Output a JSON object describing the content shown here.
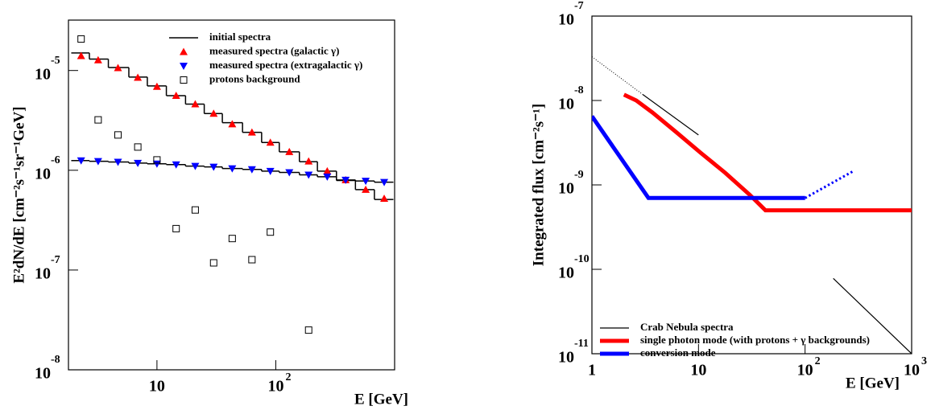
{
  "chart_data": [
    {
      "type": "scatter",
      "logx": true,
      "logy": true,
      "legend": "top",
      "xlabel": "E [GeV]",
      "ylabel": "E²dN/dE [cm⁻²s⁻¹sr⁻¹GeV]",
      "xlim": [
        1.8,
        1000
      ],
      "ylim": [
        1e-08,
        3.2e-05
      ],
      "xticks": [
        10,
        {
          "value": 100,
          "label": "10",
          "exponent": "2"
        }
      ],
      "yticks": [
        {
          "value": 1e-05,
          "label": "10",
          "exponent": "-5"
        },
        {
          "value": 1e-06,
          "label": "10",
          "exponent": "-6"
        },
        {
          "value": 1e-07,
          "label": "10",
          "exponent": "-7"
        },
        {
          "value": 1e-08,
          "label": "10",
          "exponent": "-8"
        }
      ],
      "x": [
        2.3,
        3.2,
        4.7,
        6.9,
        10,
        14.5,
        21,
        30,
        43,
        63,
        90,
        130,
        189,
        271,
        387,
        571,
        817
      ],
      "series": [
        {
          "name": "initial spectra",
          "color": "#000000",
          "style": "step",
          "bins": [
            1.9,
            2.7,
            3.9,
            5.8,
            8.3,
            12,
            17.4,
            25,
            35.5,
            52.5,
            76,
            107,
            158,
            224,
            324,
            468,
            676,
            977
          ],
          "values": [
            1.5e-05,
            1.3e-05,
            1.07e-05,
            8.6e-06,
            7e-06,
            5.6e-06,
            4.6e-06,
            3.7e-06,
            3e-06,
            2.4e-06,
            1.9e-06,
            1.53e-06,
            1.22e-06,
            9.8e-07,
            7.9e-07,
            6.4e-07,
            5.1e-07
          ]
        },
        {
          "color": "#000000",
          "style": "step",
          "bins": [
            1.9,
            2.7,
            3.9,
            5.8,
            8.3,
            12,
            17.4,
            25,
            35.5,
            52.5,
            76,
            107,
            158,
            224,
            324,
            468,
            676,
            977
          ],
          "values": [
            1.25e-06,
            1.23e-06,
            1.21e-06,
            1.18e-06,
            1.16e-06,
            1.14e-06,
            1.1e-06,
            1.08e-06,
            1.04e-06,
            1.02e-06,
            9.8e-07,
            9.5e-07,
            9e-07,
            8.6e-07,
            8e-07,
            7.8e-07,
            7.6e-07
          ]
        },
        {
          "name": "measured spectra (galactic γ)",
          "color": "#ff0000",
          "marker": "triangle-up",
          "values": [
            1.4e-05,
            1.27e-05,
            1.06e-05,
            8.5e-06,
            6.9e-06,
            5.6e-06,
            4.6e-06,
            3.7e-06,
            2.9e-06,
            2.4e-06,
            1.9e-06,
            1.53e-06,
            1.23e-06,
            9.8e-07,
            8e-07,
            6.4e-07,
            5.2e-07
          ]
        },
        {
          "name": "measured spectra (extragalactic γ)",
          "color": "#0000ff",
          "marker": "triangle-down",
          "values": [
            1.25e-06,
            1.23e-06,
            1.21e-06,
            1.18e-06,
            1.16e-06,
            1.14e-06,
            1.1e-06,
            1.08e-06,
            1.04e-06,
            1.02e-06,
            9.8e-07,
            9.5e-07,
            9e-07,
            8.6e-07,
            8e-07,
            7.8e-07,
            7.6e-07
          ]
        },
        {
          "name": "protons background",
          "color": "#000000",
          "marker": "square",
          "values": [
            2.07e-05,
            3.2e-06,
            2.26e-06,
            1.71e-06,
            1.27e-06,
            2.6e-07,
            4e-07,
            1.18e-07,
            2.07e-07,
            1.27e-07,
            2.4e-07,
            null,
            2.5e-08,
            null,
            null,
            null,
            null
          ]
        }
      ]
    },
    {
      "type": "line",
      "logx": true,
      "logy": true,
      "legend": "bottom-left",
      "xlabel": "E [GeV]",
      "ylabel": "Integrated flux [cm⁻²s⁻¹]",
      "xlim": [
        1,
        1000
      ],
      "ylim": [
        1e-11,
        1e-07
      ],
      "xticks": [
        1,
        10,
        {
          "value": 100,
          "label": "10",
          "exponent": "2"
        },
        {
          "value": 1000,
          "label": "10",
          "exponent": "3"
        }
      ],
      "yticks": [
        {
          "value": 1e-07,
          "label": "10",
          "exponent": "-7"
        },
        {
          "value": 1e-08,
          "label": "10",
          "exponent": "-8"
        },
        {
          "value": 1e-09,
          "label": "10",
          "exponent": "-9"
        },
        {
          "value": 1e-10,
          "label": "10",
          "exponent": "-10"
        },
        {
          "value": 1e-11,
          "label": "10",
          "exponent": "-11"
        }
      ],
      "series": [
        {
          "name": "Crab Nebula spectra",
          "color": "#000000",
          "width": 1.2,
          "x": [
            3,
            10,
            null,
            184,
            1000
          ],
          "values": [
            1.18e-08,
            3.9e-09,
            null,
            7.8e-11,
            1e-11
          ]
        },
        {
          "name": "single photon mode (with protons + γ backgrounds)",
          "color": "#ff0000",
          "width": 5,
          "x": [
            2,
            2.61,
            3.7,
            6.2,
            10.5,
            17.8,
            30,
            42.5,
            1000
          ],
          "values": [
            1.17e-08,
            1e-08,
            7.2e-09,
            4.2e-09,
            2.4e-09,
            1.39e-09,
            7.7e-10,
            5e-10,
            5e-10
          ]
        },
        {
          "name": "conversion mode",
          "color": "#0000ff",
          "width": 5,
          "x": [
            1,
            3.39,
            100
          ],
          "values": [
            6.5e-09,
            7e-10,
            7e-10
          ]
        },
        {
          "color": "#000000",
          "width": 1,
          "style": "dotted",
          "x": [
            1,
            3
          ],
          "values": [
            3.3e-08,
            1.18e-08
          ]
        },
        {
          "color": "#0000ff",
          "width": 3,
          "style": "dotted",
          "x": [
            100,
            290
          ],
          "values": [
            7e-10,
            1.48e-09
          ]
        }
      ]
    }
  ]
}
